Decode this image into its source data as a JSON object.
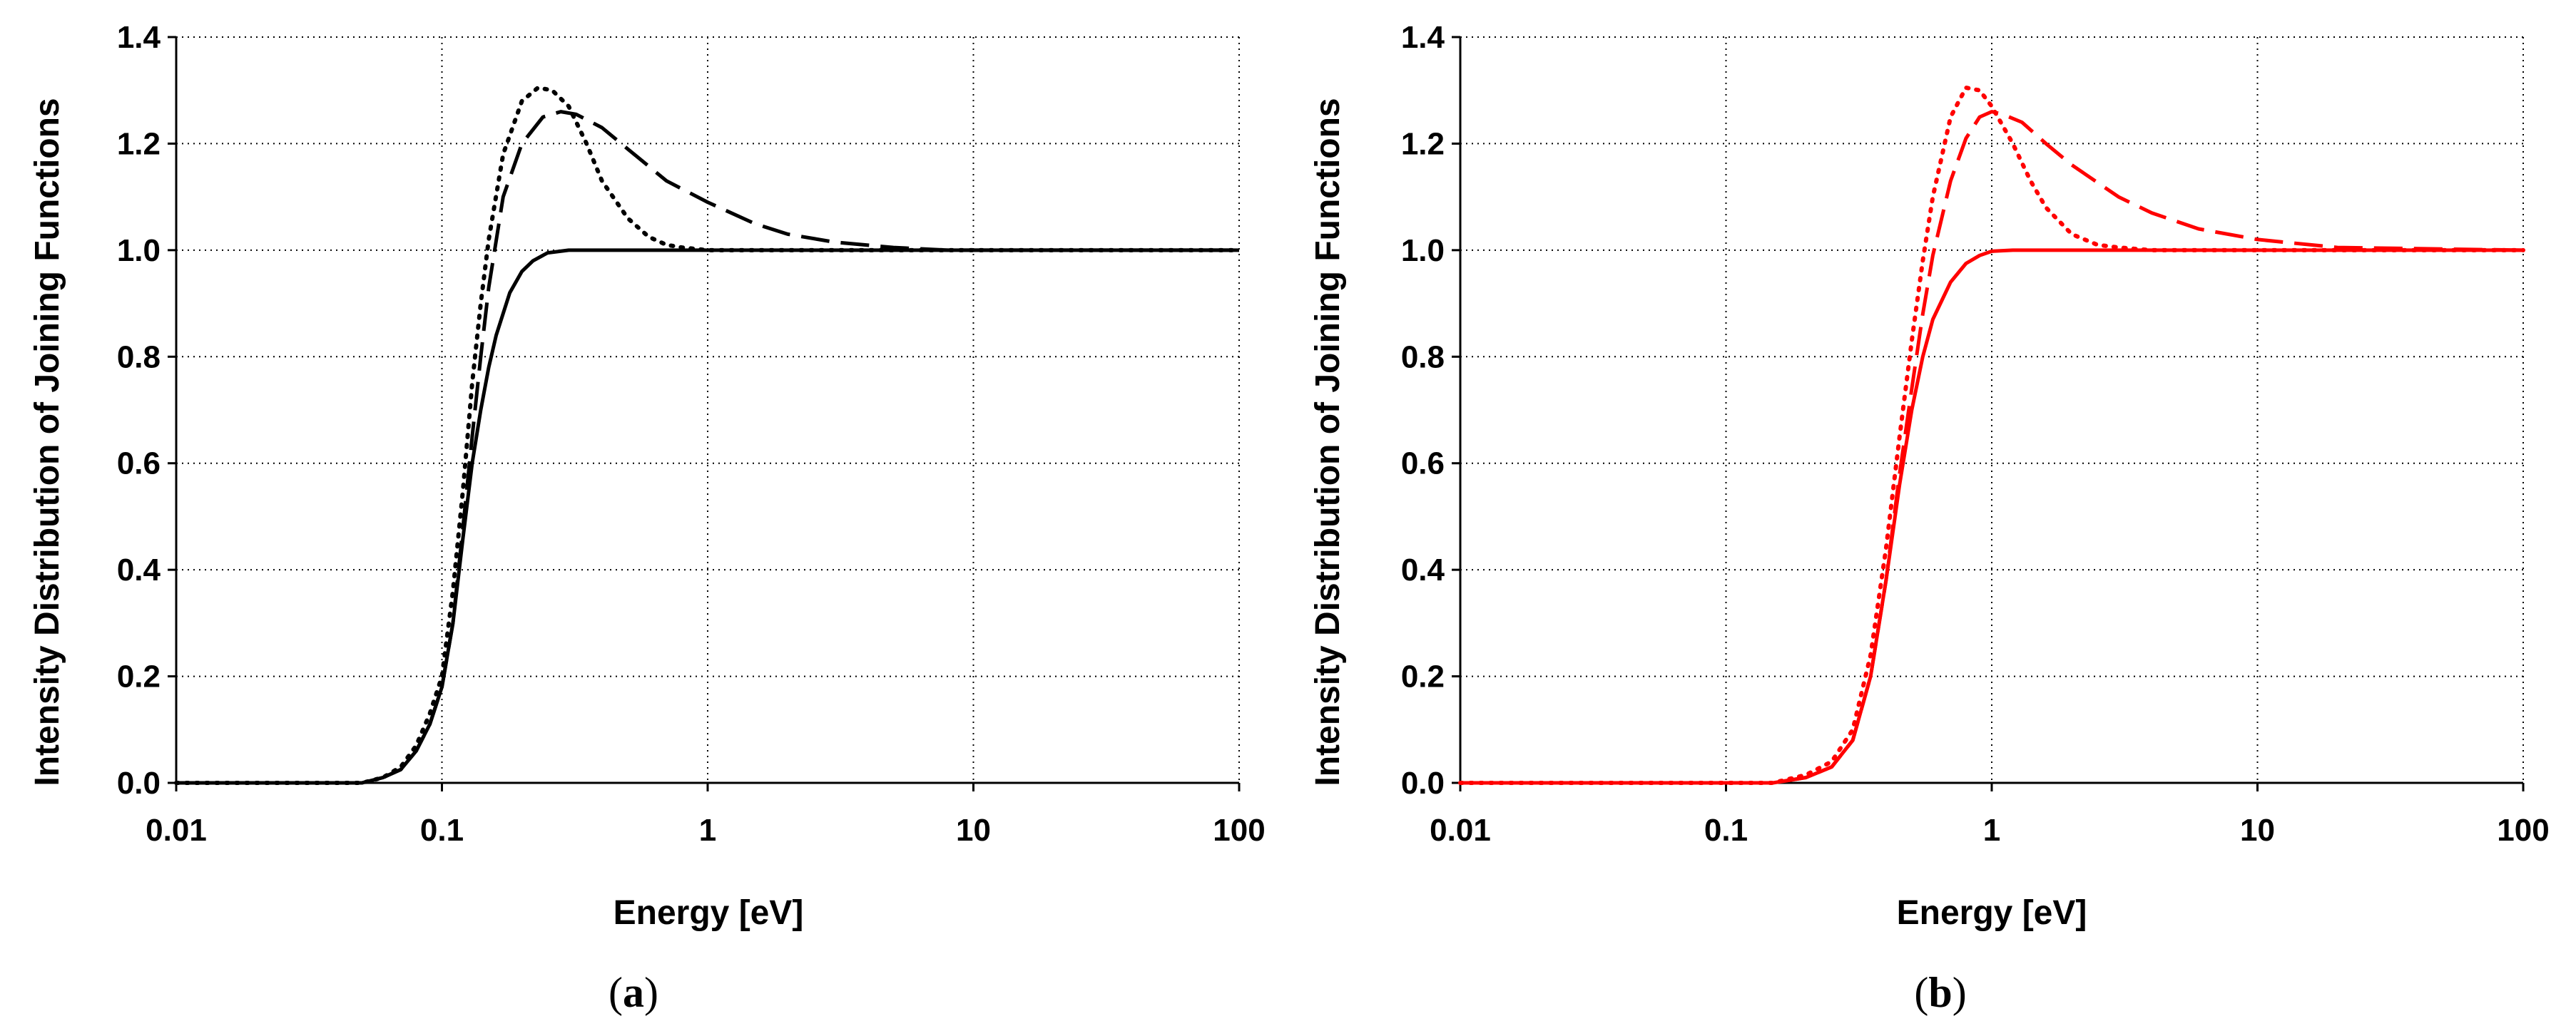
{
  "chart_data": [
    {
      "type": "line",
      "panel_label": "a",
      "xlabel": "Energy [eV]",
      "ylabel": "Intensity Distribution of Joining Functions",
      "xscale": "log",
      "xlim": [
        0.01,
        100
      ],
      "ylim": [
        0,
        1.4
      ],
      "xticks": [
        0.01,
        0.1,
        1,
        10,
        100
      ],
      "xtick_labels": [
        "0.01",
        "0.1",
        "1",
        "10",
        "100"
      ],
      "yticks": [
        0,
        0.2,
        0.4,
        0.6,
        0.8,
        1.0,
        1.2,
        1.4
      ],
      "ytick_labels": [
        "0.0",
        "0.2",
        "0.4",
        "0.6",
        "0.8",
        "1.0",
        "1.2",
        "1.4"
      ],
      "grid": true,
      "color": "#000000",
      "series": [
        {
          "style": "solid",
          "x": [
            0.01,
            0.05,
            0.06,
            0.07,
            0.08,
            0.09,
            0.1,
            0.11,
            0.12,
            0.13,
            0.14,
            0.15,
            0.16,
            0.18,
            0.2,
            0.22,
            0.25,
            0.3,
            0.4,
            1,
            10,
            100
          ],
          "y": [
            0,
            0,
            0.01,
            0.025,
            0.06,
            0.11,
            0.18,
            0.3,
            0.46,
            0.6,
            0.7,
            0.78,
            0.84,
            0.92,
            0.96,
            0.98,
            0.995,
            1.0,
            1.0,
            1.0,
            1.0,
            1.0
          ]
        },
        {
          "style": "dashed",
          "x": [
            0.01,
            0.05,
            0.06,
            0.07,
            0.08,
            0.09,
            0.1,
            0.11,
            0.12,
            0.13,
            0.14,
            0.15,
            0.17,
            0.2,
            0.24,
            0.28,
            0.32,
            0.4,
            0.5,
            0.7,
            1,
            1.5,
            2,
            3,
            5,
            8,
            100
          ],
          "y": [
            0,
            0,
            0.01,
            0.025,
            0.06,
            0.11,
            0.18,
            0.3,
            0.48,
            0.65,
            0.8,
            0.93,
            1.1,
            1.2,
            1.25,
            1.26,
            1.255,
            1.23,
            1.19,
            1.13,
            1.09,
            1.05,
            1.03,
            1.015,
            1.005,
            1.0,
            1.0
          ]
        },
        {
          "style": "dotted",
          "x": [
            0.01,
            0.05,
            0.06,
            0.07,
            0.08,
            0.09,
            0.1,
            0.11,
            0.12,
            0.13,
            0.14,
            0.15,
            0.17,
            0.2,
            0.23,
            0.26,
            0.3,
            0.35,
            0.4,
            0.5,
            0.6,
            0.7,
            0.8,
            1,
            100
          ],
          "y": [
            0,
            0,
            0.01,
            0.03,
            0.07,
            0.13,
            0.2,
            0.36,
            0.55,
            0.75,
            0.9,
            1.02,
            1.18,
            1.28,
            1.305,
            1.3,
            1.27,
            1.2,
            1.13,
            1.06,
            1.025,
            1.01,
            1.005,
            1.0,
            1.0
          ]
        }
      ]
    },
    {
      "type": "line",
      "panel_label": "b",
      "xlabel": "Energy [eV]",
      "ylabel": "Intensity Distribution of Joining Functions",
      "xscale": "log",
      "xlim": [
        0.01,
        100
      ],
      "ylim": [
        0,
        1.4
      ],
      "xticks": [
        0.01,
        0.1,
        1,
        10,
        100
      ],
      "xtick_labels": [
        "0.01",
        "0.1",
        "1",
        "10",
        "100"
      ],
      "yticks": [
        0,
        0.2,
        0.4,
        0.6,
        0.8,
        1.0,
        1.2,
        1.4
      ],
      "ytick_labels": [
        "0.0",
        "0.2",
        "0.4",
        "0.6",
        "0.8",
        "1.0",
        "1.2",
        "1.4"
      ],
      "grid": true,
      "color": "#ff0000",
      "series": [
        {
          "style": "solid",
          "x": [
            0.01,
            0.15,
            0.2,
            0.25,
            0.3,
            0.35,
            0.4,
            0.45,
            0.5,
            0.55,
            0.6,
            0.7,
            0.8,
            0.9,
            1,
            1.2,
            10,
            100
          ],
          "y": [
            0,
            0,
            0.01,
            0.03,
            0.08,
            0.2,
            0.38,
            0.56,
            0.7,
            0.8,
            0.87,
            0.94,
            0.975,
            0.99,
            0.998,
            1.0,
            1.0,
            1.0
          ]
        },
        {
          "style": "dashed",
          "x": [
            0.01,
            0.15,
            0.2,
            0.25,
            0.3,
            0.35,
            0.4,
            0.45,
            0.5,
            0.55,
            0.6,
            0.7,
            0.8,
            0.9,
            1,
            1.1,
            1.3,
            1.6,
            2,
            3,
            4,
            6,
            10,
            20,
            100
          ],
          "y": [
            0,
            0,
            0.01,
            0.03,
            0.08,
            0.2,
            0.38,
            0.58,
            0.74,
            0.88,
            0.99,
            1.13,
            1.21,
            1.25,
            1.26,
            1.255,
            1.24,
            1.2,
            1.16,
            1.1,
            1.07,
            1.04,
            1.02,
            1.005,
            1.0
          ]
        },
        {
          "style": "dotted",
          "x": [
            0.01,
            0.15,
            0.2,
            0.25,
            0.3,
            0.35,
            0.4,
            0.45,
            0.5,
            0.55,
            0.6,
            0.7,
            0.8,
            0.9,
            1,
            1.2,
            1.4,
            1.6,
            2,
            2.5,
            3,
            4,
            100
          ],
          "y": [
            0,
            0,
            0.015,
            0.04,
            0.1,
            0.24,
            0.44,
            0.65,
            0.83,
            0.98,
            1.1,
            1.25,
            1.305,
            1.3,
            1.27,
            1.2,
            1.13,
            1.08,
            1.03,
            1.01,
            1.005,
            1.0,
            1.0
          ]
        }
      ]
    }
  ]
}
